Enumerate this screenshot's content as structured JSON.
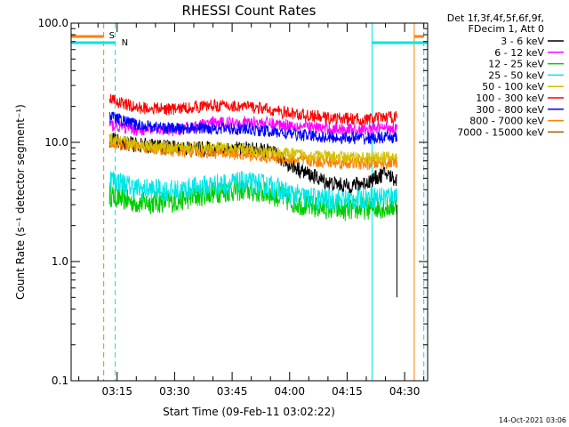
{
  "chart_data": {
    "type": "line",
    "title": "RHESSI Count Rates",
    "xlabel": "Start Time (09-Feb-11 03:02:22)",
    "ylabel": "Count Rate (s⁻¹ detector segment⁻¹)",
    "y_scale": "log",
    "ylim": [
      0.1,
      100.0
    ],
    "xlim_minutes": [
      3.0,
      96.0
    ],
    "x_ticks": [
      "03:15",
      "03:30",
      "03:45",
      "04:00",
      "04:15",
      "04:30"
    ],
    "y_ticks": [
      "0.1",
      "1.0",
      "10.0",
      "100.0"
    ],
    "legend_header": [
      "Det 1f,3f,4f,5f,6f,9f,",
      "FDecim 1, Att 0"
    ],
    "legend_position": "top-right outside plot",
    "series": [
      {
        "name": "3 - 6 keV",
        "color": "#000000",
        "x": [
          13,
          20,
          30,
          40,
          48,
          55,
          60,
          65,
          70,
          75,
          80,
          85,
          88
        ],
        "y": [
          10.5,
          9.5,
          9.0,
          8.8,
          8.8,
          8.4,
          6.5,
          5.4,
          4.6,
          4.3,
          4.6,
          5.5,
          4.8
        ]
      },
      {
        "name": "6 - 12 keV",
        "color": "#ff00ff",
        "x": [
          13,
          20,
          30,
          40,
          50,
          60,
          70,
          80,
          88
        ],
        "y": [
          14.0,
          12.8,
          12.6,
          14.5,
          14.8,
          14.0,
          13.0,
          12.8,
          13.5
        ]
      },
      {
        "name": "12 - 25 keV",
        "color": "#00cc00",
        "x": [
          13,
          20,
          30,
          40,
          48,
          55,
          60,
          65,
          70,
          75,
          80,
          88
        ],
        "y": [
          3.6,
          3.1,
          3.2,
          3.8,
          4.0,
          3.7,
          3.2,
          2.9,
          2.8,
          2.7,
          2.8,
          2.9
        ]
      },
      {
        "name": "25 - 50 keV",
        "color": "#00e5e5",
        "x": [
          13,
          20,
          30,
          40,
          48,
          55,
          60,
          65,
          70,
          75,
          80,
          88
        ],
        "y": [
          5.0,
          4.1,
          3.9,
          4.4,
          4.6,
          4.3,
          3.7,
          3.4,
          3.3,
          3.3,
          3.4,
          3.6
        ]
      },
      {
        "name": "50 - 100 keV",
        "color": "#d4c000",
        "x": [
          13,
          20,
          30,
          40,
          50,
          60,
          70,
          80,
          88
        ],
        "y": [
          10.5,
          9.6,
          9.0,
          9.0,
          8.5,
          8.0,
          7.6,
          7.4,
          7.5
        ]
      },
      {
        "name": "100 - 300 keV",
        "color": "#ff0000",
        "x": [
          13,
          20,
          30,
          40,
          50,
          60,
          70,
          80,
          88
        ],
        "y": [
          23.0,
          19.5,
          19.0,
          20.5,
          19.8,
          17.5,
          16.0,
          15.5,
          16.5
        ]
      },
      {
        "name": "300 - 800 keV",
        "color": "#0000ff",
        "x": [
          13,
          20,
          30,
          40,
          50,
          60,
          70,
          80,
          88
        ],
        "y": [
          16.5,
          14.0,
          13.0,
          13.2,
          12.8,
          11.8,
          11.0,
          10.8,
          11.0
        ]
      },
      {
        "name": "800 - 7000 keV",
        "color": "#ff8000",
        "x": [
          13,
          20,
          30,
          40,
          50,
          60,
          70,
          80,
          88
        ],
        "y": [
          10.0,
          9.2,
          8.5,
          8.2,
          7.8,
          7.2,
          6.8,
          6.6,
          6.8
        ]
      },
      {
        "name": "7000 - 15000 keV",
        "color": "#a06000",
        "x": [],
        "y": []
      }
    ],
    "annotations": [
      {
        "text": "S",
        "color": "#ff8000"
      },
      {
        "text": "N",
        "color": "#00e5e5"
      }
    ],
    "attenuator_lines": {
      "color": "#ff8000",
      "times": [
        11.5,
        92.5
      ]
    },
    "night_lines": {
      "color": "#00e5e5",
      "times": [
        14.5,
        81.5,
        95.0
      ]
    },
    "footer_timestamp": "14-Oct-2021 03:06"
  }
}
